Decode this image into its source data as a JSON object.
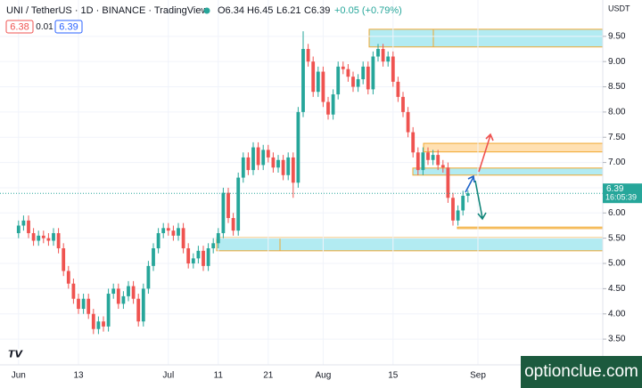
{
  "header": {
    "symbol": "UNI / TetherUS · 1D · BINANCE · TradingView",
    "o": "O6.34",
    "h": "H6.45",
    "l": "L6.21",
    "c": "C6.39",
    "change": "+0.05 (+0.79%)",
    "sell": "6.38",
    "spread": "0.01",
    "buy": "6.39"
  },
  "watermark": "optionclue.com",
  "chart_data": {
    "type": "candlestick",
    "currency": "USDT",
    "countdown": "16:05:39",
    "categories": [
      "Jun",
      null,
      null,
      null,
      null,
      null,
      null,
      null,
      null,
      null,
      null,
      null,
      "13",
      null,
      null,
      null,
      null,
      null,
      null,
      null,
      null,
      null,
      null,
      null,
      null,
      null,
      null,
      null,
      null,
      null,
      "Jul",
      null,
      null,
      null,
      null,
      null,
      null,
      null,
      null,
      null,
      "11",
      null,
      null,
      null,
      null,
      null,
      null,
      null,
      null,
      null,
      "21",
      null,
      null,
      null,
      null,
      null,
      null,
      null,
      null,
      null,
      null,
      "Aug",
      null,
      null,
      null,
      null,
      null,
      null,
      null,
      null,
      null,
      null,
      null,
      null,
      null,
      "15",
      null,
      null,
      null,
      null,
      null,
      null,
      null,
      null,
      null,
      null,
      null,
      null,
      null,
      null,
      null,
      null,
      "Sep"
    ],
    "open": [
      5.6,
      5.75,
      5.85,
      5.6,
      5.45,
      5.55,
      5.5,
      5.45,
      5.6,
      5.3,
      4.85,
      4.6,
      4.3,
      4.1,
      4.3,
      4.0,
      3.7,
      3.85,
      3.75,
      4.4,
      4.5,
      4.2,
      4.35,
      4.55,
      4.3,
      3.85,
      4.5,
      4.95,
      5.3,
      5.6,
      5.7,
      5.65,
      5.55,
      5.7,
      5.3,
      5.0,
      5.1,
      5.25,
      4.95,
      5.3,
      5.4,
      5.6,
      6.4,
      5.9,
      5.65,
      6.7,
      7.1,
      6.85,
      7.3,
      6.95,
      7.25,
      7.1,
      6.9,
      7.05,
      6.75,
      7.1,
      6.6,
      8.0,
      9.25,
      9.0,
      8.4,
      8.8,
      8.2,
      7.95,
      8.35,
      8.9,
      8.85,
      8.7,
      8.5,
      8.65,
      8.9,
      8.45,
      9.1,
      9.25,
      9.0,
      9.1,
      8.6,
      8.3,
      8.0,
      7.6,
      7.2,
      6.85,
      7.2,
      7.05,
      7.15,
      6.95,
      6.9,
      6.3,
      5.85,
      6.05,
      6.34,
      null,
      null
    ],
    "high": [
      5.85,
      5.95,
      5.95,
      5.7,
      5.65,
      5.65,
      5.6,
      5.7,
      5.7,
      5.4,
      4.95,
      4.7,
      4.4,
      4.4,
      4.4,
      4.1,
      3.95,
      3.95,
      4.5,
      4.6,
      4.6,
      4.45,
      4.65,
      4.65,
      4.4,
      4.6,
      5.05,
      5.4,
      5.7,
      5.8,
      5.8,
      5.75,
      5.8,
      5.8,
      5.4,
      5.2,
      5.35,
      5.35,
      5.4,
      5.5,
      5.7,
      6.5,
      6.5,
      6.0,
      6.8,
      7.2,
      7.2,
      7.4,
      7.4,
      7.35,
      7.35,
      7.2,
      7.15,
      7.15,
      7.2,
      7.2,
      8.1,
      9.6,
      9.35,
      9.1,
      8.9,
      8.9,
      8.3,
      8.45,
      9.0,
      9.0,
      8.95,
      8.8,
      8.75,
      9.0,
      9.0,
      9.2,
      9.35,
      9.35,
      9.2,
      9.2,
      8.7,
      8.4,
      8.1,
      7.7,
      7.3,
      7.3,
      7.3,
      7.25,
      7.25,
      7.05,
      7.0,
      6.4,
      6.15,
      6.44,
      6.45,
      null,
      null
    ],
    "low": [
      5.5,
      5.65,
      5.5,
      5.35,
      5.35,
      5.4,
      5.35,
      5.35,
      5.2,
      4.75,
      4.5,
      4.2,
      4.0,
      4.0,
      3.9,
      3.6,
      3.6,
      3.65,
      3.65,
      4.3,
      4.1,
      4.1,
      4.25,
      4.2,
      3.75,
      3.75,
      4.4,
      4.85,
      5.2,
      5.5,
      5.55,
      5.45,
      5.45,
      5.2,
      4.9,
      4.9,
      5.0,
      4.85,
      4.85,
      5.2,
      5.3,
      5.5,
      5.8,
      5.55,
      5.55,
      6.6,
      6.75,
      6.75,
      6.85,
      6.85,
      7.0,
      6.8,
      6.8,
      6.65,
      6.65,
      6.3,
      6.5,
      7.9,
      8.9,
      8.3,
      8.3,
      8.1,
      7.85,
      7.85,
      8.25,
      8.75,
      8.6,
      8.4,
      8.4,
      8.55,
      8.35,
      8.35,
      9.0,
      8.9,
      8.9,
      8.5,
      8.2,
      7.9,
      7.5,
      7.1,
      6.75,
      6.75,
      6.95,
      6.95,
      6.85,
      6.8,
      6.2,
      5.75,
      5.75,
      5.95,
      6.21,
      null,
      null
    ],
    "close": [
      5.75,
      5.85,
      5.6,
      5.45,
      5.55,
      5.5,
      5.45,
      5.6,
      5.3,
      4.85,
      4.6,
      4.3,
      4.1,
      4.3,
      4.0,
      3.7,
      3.85,
      3.75,
      4.4,
      4.5,
      4.2,
      4.35,
      4.55,
      4.3,
      3.85,
      4.5,
      4.95,
      5.3,
      5.6,
      5.7,
      5.65,
      5.55,
      5.7,
      5.3,
      5.0,
      5.1,
      5.25,
      4.95,
      5.3,
      5.4,
      5.6,
      6.4,
      5.9,
      5.65,
      6.7,
      7.1,
      6.85,
      7.3,
      6.95,
      7.25,
      7.1,
      6.9,
      7.05,
      6.75,
      7.1,
      6.6,
      8.0,
      9.25,
      9.0,
      8.4,
      8.8,
      8.2,
      7.95,
      8.35,
      8.9,
      8.85,
      8.7,
      8.5,
      8.65,
      8.9,
      8.45,
      9.1,
      9.25,
      9.0,
      9.1,
      8.6,
      8.3,
      8.0,
      7.6,
      7.2,
      6.85,
      7.2,
      7.05,
      7.15,
      6.95,
      6.9,
      6.3,
      5.85,
      6.05,
      6.34,
      6.39,
      null,
      null
    ],
    "up_color": "#26a69a",
    "down_color": "#ef5350",
    "ylim": [
      2.99,
      10.22
    ],
    "yticks": [
      {
        "value": 3.5,
        "label": "3.50"
      },
      {
        "value": 4,
        "label": "4.00"
      },
      {
        "value": 4.5,
        "label": "4.50"
      },
      {
        "value": 5,
        "label": "5.00"
      },
      {
        "value": 5.5,
        "label": "5.50"
      },
      {
        "value": 6,
        "label": "6.00"
      },
      {
        "value": 6.5,
        "label": "6.50"
      },
      {
        "value": 7,
        "label": "7.00"
      },
      {
        "value": 7.5,
        "label": "7.50"
      },
      {
        "value": 8,
        "label": "8.00"
      },
      {
        "value": 8.5,
        "label": "8.50"
      },
      {
        "value": 9,
        "label": "9.00"
      },
      {
        "value": 9.5,
        "label": "9.50"
      }
    ],
    "grid": true,
    "zones": [
      {
        "low": 9.29,
        "high": 9.64,
        "fill": "#b2ebf2"
      },
      {
        "low": 7.21,
        "high": 7.38,
        "fill": "#ffe0b2"
      },
      {
        "low": 6.75,
        "high": 6.89,
        "fill": "#b2ebf2"
      },
      {
        "low": 5.69,
        "high": 5.72,
        "fill": "#ffe0b2"
      },
      {
        "low": 5.25,
        "high": 5.51,
        "fill": "#b2ebf2"
      }
    ]
  }
}
